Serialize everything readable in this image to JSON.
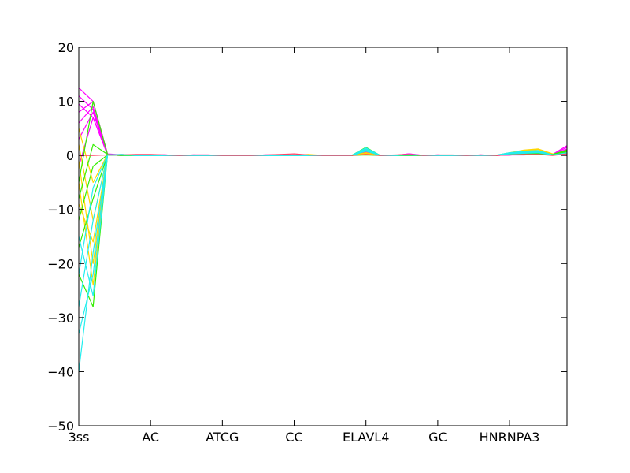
{
  "chart_data": {
    "type": "line",
    "title": "",
    "xlabel": "",
    "ylabel": "",
    "ylim": [
      -50,
      20
    ],
    "yticks": [
      -50,
      -40,
      -30,
      -20,
      -10,
      0,
      10,
      20
    ],
    "ytick_labels": [
      "−50",
      "−40",
      "−30",
      "−20",
      "−10",
      "0",
      "10",
      "20"
    ],
    "x_positions": 35,
    "xtick_positions": [
      0,
      5,
      10,
      15,
      20,
      25,
      30
    ],
    "xtick_labels": [
      "3ss",
      "AC",
      "ATCG",
      "CC",
      "ELAVL4",
      "GC",
      "HNRNPA3"
    ],
    "grid": false,
    "legend": "none",
    "series_groups": [
      {
        "color": "#ff00ff",
        "description": "magenta",
        "profiles": [
          [
            12.5,
            10.0,
            0.3,
            0.1,
            0,
            0.1,
            0.1,
            0,
            0.1,
            0.1,
            0,
            0,
            0,
            0.1,
            0.1,
            0,
            0,
            0,
            0,
            0,
            0.5,
            0,
            0,
            0.3,
            0,
            0.1,
            0,
            0,
            0.1,
            0,
            0.2,
            0.4,
            0.5,
            0.2,
            1.8
          ],
          [
            11.0,
            8.5,
            0.2,
            0,
            0,
            0.1,
            0.1,
            0,
            0.1,
            0,
            0,
            0,
            0,
            0.1,
            0.1,
            0,
            0,
            0,
            0,
            0,
            0.5,
            0,
            0,
            0.3,
            0,
            0.1,
            0,
            0,
            0.1,
            0,
            0.2,
            0.3,
            0.4,
            0.2,
            1.5
          ],
          [
            9.5,
            7.0,
            0.2,
            0,
            0,
            0,
            0.1,
            0,
            0,
            0,
            0,
            0,
            0,
            0,
            0.1,
            0,
            0,
            0,
            0,
            0,
            0.6,
            0,
            0,
            0.2,
            0,
            0,
            0,
            0,
            0,
            0,
            0.1,
            0.3,
            0.4,
            0.1,
            1.2
          ],
          [
            8.0,
            10.0,
            0.2,
            0,
            0,
            0,
            0,
            0,
            0,
            0,
            0,
            0,
            0,
            0,
            0,
            0,
            0,
            0,
            0,
            0,
            0.5,
            0,
            0,
            0.2,
            0,
            0,
            0,
            0,
            0,
            0,
            0.1,
            0.2,
            0.3,
            0.1,
            1.0
          ],
          [
            6.0,
            9.0,
            0.1,
            0,
            0,
            0,
            0,
            0,
            0,
            0,
            0,
            0,
            0,
            0,
            0,
            0,
            0,
            0,
            0,
            0,
            0.5,
            0,
            0,
            0.2,
            0,
            0,
            0,
            0,
            0,
            0,
            0.1,
            0.2,
            0.3,
            0.1,
            0.8
          ],
          [
            3.0,
            8.0,
            0.1,
            0,
            0,
            0,
            0,
            0,
            0,
            0,
            0,
            0,
            0,
            0,
            0,
            0,
            0,
            0,
            0,
            0,
            0.4,
            0,
            0,
            0.2,
            0,
            0,
            0,
            0,
            0,
            0,
            0.1,
            0.2,
            0.2,
            0.1,
            0.6
          ],
          [
            -2.0,
            7.0,
            0.1,
            0,
            0,
            0,
            0,
            0,
            0,
            0,
            0,
            0,
            0,
            0,
            0,
            0,
            0,
            0,
            0,
            0,
            0.4,
            0,
            0,
            0.2,
            0,
            0,
            0,
            0,
            0,
            0,
            0.1,
            0.1,
            0.2,
            0.1,
            0.5
          ]
        ]
      },
      {
        "color": "#ffd700",
        "description": "yellow",
        "profiles": [
          [
            5.0,
            -5.0,
            0.2,
            0,
            0,
            0.1,
            0,
            0,
            0,
            0,
            0,
            0,
            0,
            0,
            0,
            0,
            0.2,
            0,
            0,
            0,
            0.5,
            0,
            0,
            0.1,
            0,
            0,
            0,
            0,
            0,
            0,
            0.5,
            1.0,
            1.2,
            0.3,
            0.5
          ],
          [
            2.0,
            -12.0,
            0.2,
            0,
            0,
            0.1,
            0,
            0,
            0,
            0,
            0,
            0,
            0,
            0,
            0,
            0,
            0.1,
            0,
            0,
            0,
            0.5,
            0,
            0,
            0.1,
            0,
            0,
            0,
            0,
            0,
            0,
            0.4,
            0.9,
            1.1,
            0.2,
            0.4
          ],
          [
            -1.0,
            -20.0,
            0.1,
            0,
            0,
            0,
            0,
            0,
            0,
            0,
            0,
            0,
            0,
            0,
            0,
            0,
            0,
            0,
            0,
            0,
            0.4,
            0,
            0,
            0,
            0,
            0,
            0,
            0,
            0,
            0,
            0.3,
            0.8,
            0.9,
            0.2,
            0.3
          ],
          [
            -5.0,
            -24.0,
            0.1,
            0,
            0,
            0,
            0,
            0,
            0,
            0,
            0,
            0,
            0,
            0,
            0,
            0,
            0,
            0,
            0,
            0,
            0.4,
            0,
            0,
            0,
            0,
            0,
            0,
            0,
            0,
            0,
            0.2,
            0.6,
            0.8,
            0.1,
            0.2
          ],
          [
            -9.0,
            -16.0,
            0.1,
            0,
            0,
            0,
            0,
            0,
            0,
            0,
            0,
            0,
            0,
            0,
            0,
            0,
            0,
            0,
            0,
            0,
            0.3,
            0,
            0,
            0,
            0,
            0,
            0,
            0,
            0,
            0,
            0.2,
            0.5,
            0.6,
            0.1,
            0.2
          ]
        ]
      },
      {
        "color": "#33ee00",
        "description": "green",
        "profiles": [
          [
            -5.0,
            10.0,
            0.2,
            0,
            0,
            0,
            0,
            0,
            0,
            0,
            0,
            0,
            0,
            0,
            0,
            0,
            0,
            0,
            0,
            0,
            1.5,
            0,
            0,
            0,
            0,
            0,
            0,
            0,
            0,
            0,
            0.3,
            0.5,
            0.6,
            0.2,
            1.0
          ],
          [
            -8.0,
            2.0,
            0.2,
            0,
            0,
            0,
            0,
            0,
            0,
            0,
            0,
            0,
            0,
            0,
            0,
            0,
            0,
            0,
            0,
            0,
            1.2,
            0,
            0,
            0,
            0,
            0,
            0,
            0,
            0,
            0,
            0.3,
            0.4,
            0.5,
            0.2,
            0.8
          ],
          [
            -12.0,
            -2.0,
            0.1,
            0,
            0,
            0,
            0,
            0,
            0,
            0,
            0,
            0,
            0,
            0,
            0,
            0,
            0,
            0,
            0,
            0,
            1.0,
            0,
            0,
            0,
            0,
            0,
            0,
            0,
            0,
            0,
            0.2,
            0.3,
            0.4,
            0.1,
            0.6
          ],
          [
            -17.0,
            -8.0,
            0.1,
            0,
            0,
            0,
            0,
            0,
            0,
            0,
            0,
            0,
            0,
            0,
            0,
            0,
            0,
            0,
            0,
            0,
            0.1,
            0,
            0,
            0,
            0,
            0,
            0,
            0,
            0,
            0,
            0.2,
            0.3,
            0.3,
            0.1,
            0.4
          ],
          [
            -22.0,
            -28.0,
            0.1,
            0,
            0,
            0,
            0,
            0,
            0,
            0,
            0,
            0,
            0,
            0,
            0,
            0,
            0,
            0,
            0,
            0,
            0.8,
            0,
            0,
            0,
            0,
            0,
            0,
            0,
            0,
            0,
            0.2,
            0.3,
            0.3,
            0.1,
            0.3
          ]
        ]
      },
      {
        "color": "#22eeee",
        "description": "cyan",
        "profiles": [
          [
            -40.0,
            -18.0,
            0.1,
            0.2,
            0,
            0,
            0,
            0,
            0,
            0,
            0,
            0,
            0,
            0,
            0,
            0,
            0,
            0,
            0,
            0,
            1.4,
            0,
            0,
            0.2,
            0,
            0,
            0,
            0,
            0,
            0,
            0.5,
            0.8,
            0.9,
            0.1,
            0.5
          ],
          [
            -33.0,
            -22.0,
            0.1,
            0.2,
            0,
            0,
            0,
            0,
            0,
            0,
            0,
            0,
            0,
            0,
            0,
            0,
            0,
            0,
            0,
            0,
            1.2,
            0,
            0,
            0.2,
            0,
            0,
            0,
            0,
            0,
            0,
            0.5,
            0.7,
            0.8,
            0.1,
            0.4
          ],
          [
            -28.0,
            -12.0,
            0.1,
            0.1,
            0,
            0,
            0,
            0,
            0,
            0,
            0,
            0,
            0,
            0,
            0,
            0,
            0,
            0,
            0,
            0,
            1.0,
            0,
            0,
            0.1,
            0,
            0,
            0,
            0,
            0,
            0,
            0.4,
            0.6,
            0.7,
            0.1,
            0.3
          ],
          [
            -22.0,
            -6.0,
            0.1,
            0.1,
            0,
            0,
            0,
            0,
            0,
            0,
            0,
            0,
            0,
            0,
            0,
            0,
            0,
            0,
            0,
            0,
            0.9,
            0,
            0,
            0.1,
            0,
            0,
            0,
            0,
            0,
            0,
            0.4,
            0.5,
            0.6,
            0.1,
            0.2
          ],
          [
            -15.0,
            -26.0,
            0.1,
            0.1,
            0,
            0,
            0,
            0,
            0,
            0,
            0,
            0,
            0,
            0,
            0,
            0,
            0,
            0,
            0,
            0,
            0.8,
            0,
            0,
            0.1,
            0,
            0,
            0,
            0,
            0,
            0,
            0.3,
            0.4,
            0.5,
            0.1,
            0.2
          ]
        ]
      },
      {
        "color": "#ff4466",
        "description": "red-pink",
        "profiles": [
          [
            0,
            0,
            0.1,
            0.1,
            0.2,
            0.2,
            0.1,
            0,
            0.1,
            0.1,
            0,
            0,
            0,
            0.1,
            0.2,
            0.3,
            0.1,
            0,
            0,
            0,
            0.2,
            0,
            0.1,
            0.2,
            0,
            0.1,
            0.1,
            0,
            0.1,
            0,
            0.1,
            0.2,
            0.2,
            0,
            0.3
          ]
        ]
      }
    ]
  }
}
